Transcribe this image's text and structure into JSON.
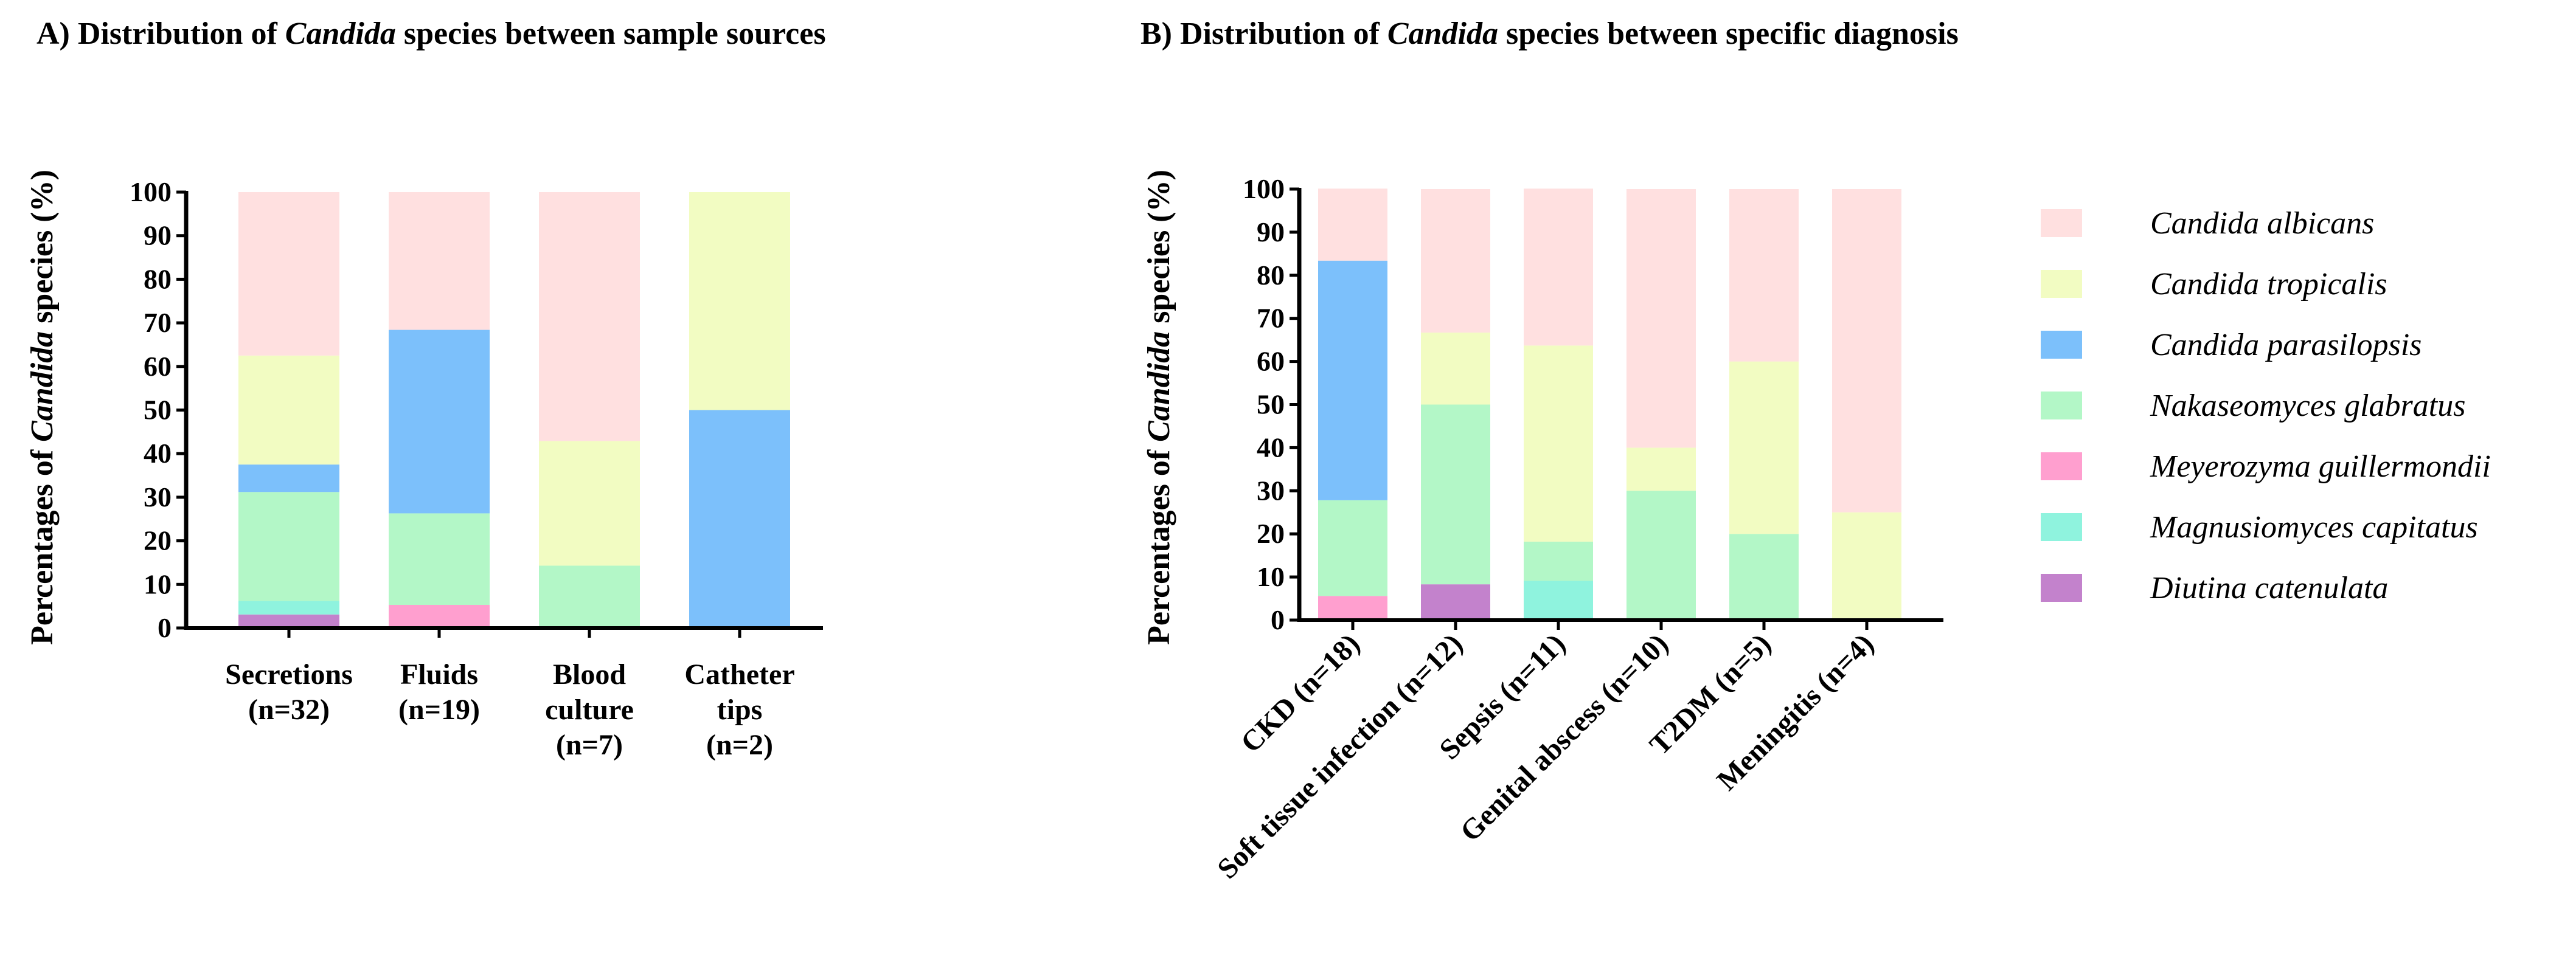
{
  "colors": {
    "Candida albicans": "#ffe0e0",
    "Candida tropicalis": "#f2fcc2",
    "Candida parasilopsis": "#7cc0fb",
    "Nakaseomyces glabratus": "#b3f7c7",
    "Meyerozyma guillermondii": "#ff9fcf",
    "Magnusiomyces capitatus": "#8ff3de",
    "Diutina catenulata": "#c382cc"
  },
  "legend": [
    "Candida albicans",
    "Candida tropicalis",
    "Candida parasilopsis",
    "Nakaseomyces glabratus",
    "Meyerozyma guillermondii",
    "Magnusiomyces capitatus",
    "Diutina catenulata"
  ],
  "chart_data": [
    {
      "type": "bar",
      "stacked": true,
      "title": {
        "prefix": "A) Distribution of ",
        "italic": "Candida",
        "suffix": " species between sample sources"
      },
      "ylabel": {
        "prefix": "Percentages of ",
        "italic": "Candida",
        "suffix": " species (%)"
      },
      "ylim": [
        0,
        100
      ],
      "yticks": [
        0,
        10,
        20,
        30,
        40,
        50,
        60,
        70,
        80,
        90,
        100
      ],
      "categories": [
        [
          "Secretions",
          "(n=32)"
        ],
        [
          "Fluids",
          "(n=19)"
        ],
        [
          "Blood",
          "culture",
          "(n=7)"
        ],
        [
          "Catheter",
          "tips",
          "(n=2)"
        ]
      ],
      "series": [
        {
          "name": "Diutina catenulata",
          "values": [
            3.1,
            0,
            0,
            0
          ]
        },
        {
          "name": "Magnusiomyces capitatus",
          "values": [
            3.1,
            0,
            0,
            0
          ]
        },
        {
          "name": "Meyerozyma guillermondii",
          "values": [
            0,
            5.3,
            0,
            0
          ]
        },
        {
          "name": "Nakaseomyces glabratus",
          "values": [
            25.0,
            21.0,
            14.3,
            0
          ]
        },
        {
          "name": "Candida parasilopsis",
          "values": [
            6.3,
            42.1,
            0,
            50.0
          ]
        },
        {
          "name": "Candida tropicalis",
          "values": [
            25.0,
            0,
            28.6,
            50.0
          ]
        },
        {
          "name": "Candida albicans",
          "values": [
            37.5,
            31.6,
            57.1,
            0
          ]
        }
      ]
    },
    {
      "type": "bar",
      "stacked": true,
      "title": {
        "prefix": "B) Distribution of ",
        "italic": "Candida",
        "suffix": " species between specific diagnosis"
      },
      "ylabel": {
        "prefix": "Percentages of ",
        "italic": "Candida",
        "suffix": " species (%)"
      },
      "ylim": [
        0,
        100
      ],
      "yticks": [
        0,
        10,
        20,
        30,
        40,
        50,
        60,
        70,
        80,
        90,
        100
      ],
      "categories": [
        "CKD (n=18)",
        "Soft tissue infection (n=12)",
        "Sepsis (n=11)",
        "Genital abscess (n=10)",
        "T2DM (n=5)",
        "Meningitis (n=4)"
      ],
      "series": [
        {
          "name": "Diutina catenulata",
          "values": [
            0,
            8.3,
            0,
            0,
            0,
            0
          ]
        },
        {
          "name": "Magnusiomyces capitatus",
          "values": [
            0,
            0,
            9.1,
            0,
            0,
            0
          ]
        },
        {
          "name": "Meyerozyma guillermondii",
          "values": [
            5.6,
            0,
            0,
            0,
            0,
            0
          ]
        },
        {
          "name": "Nakaseomyces glabratus",
          "values": [
            22.2,
            41.7,
            9.1,
            30.0,
            20.0,
            0
          ]
        },
        {
          "name": "Candida parasilopsis",
          "values": [
            55.6,
            0,
            0,
            0,
            0,
            0
          ]
        },
        {
          "name": "Candida tropicalis",
          "values": [
            0,
            16.7,
            45.5,
            10.0,
            40.0,
            25.0
          ]
        },
        {
          "name": "Candida albicans",
          "values": [
            16.7,
            33.3,
            36.4,
            60.0,
            40.0,
            75.0
          ]
        }
      ]
    }
  ]
}
